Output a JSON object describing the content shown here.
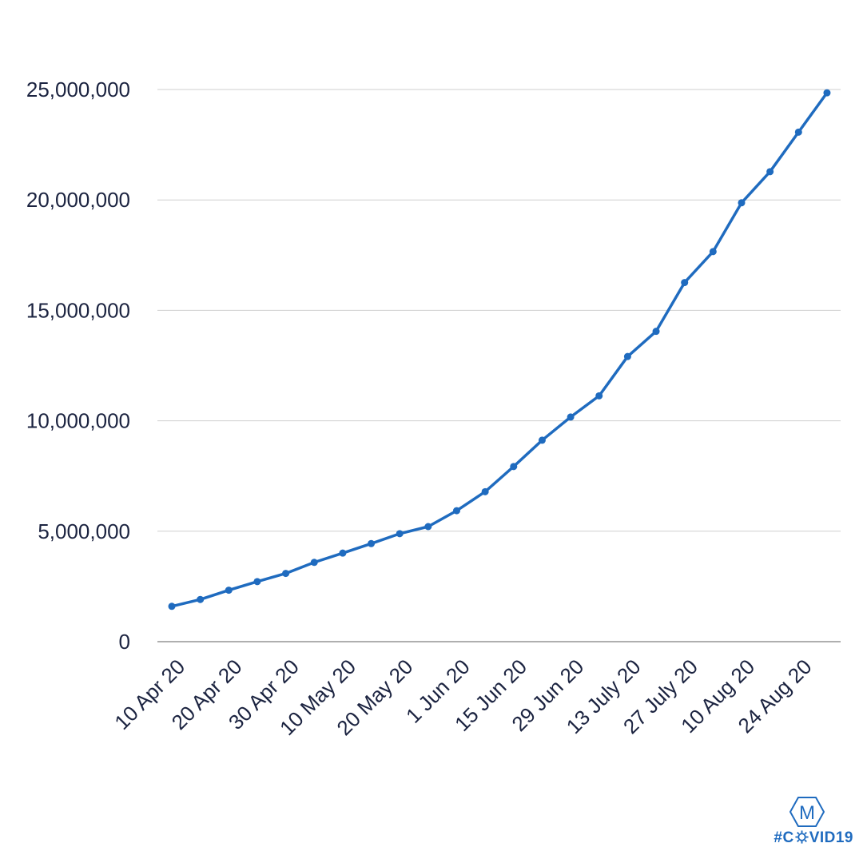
{
  "chart_data": {
    "type": "line",
    "title": "",
    "xlabel": "",
    "ylabel": "",
    "x_tick_labels": [
      "10 Apr 20",
      "20 Apr 20",
      "30 Apr 20",
      "10 May 20",
      "20 May 20",
      "1 Jun 20",
      "15 Jun 20",
      "29 Jun 20",
      "13 July 20",
      "27 July 20",
      "10 Aug 20",
      "24 Aug 20"
    ],
    "y_tick_labels": [
      "0",
      "5,000,000",
      "10,000,000",
      "15,000,000",
      "20,000,000",
      "25,000,000"
    ],
    "ylim": [
      0,
      25000000
    ],
    "grid": true,
    "legend": "none",
    "series": [
      {
        "color": "#1f6bbf",
        "x": [
          "10 Apr 20",
          "15 Apr 20",
          "20 Apr 20",
          "25 Apr 20",
          "30 Apr 20",
          "5 May 20",
          "10 May 20",
          "15 May 20",
          "20 May 20",
          "25 May 20",
          "1 Jun 20",
          "8 Jun 20",
          "15 Jun 20",
          "22 Jun 20",
          "29 Jun 20",
          "6 July 20",
          "13 July 20",
          "20 July 20",
          "27 July 20",
          "3 Aug 20",
          "10 Aug 20",
          "17 Aug 20",
          "24 Aug 20",
          "31 Aug 20"
        ],
        "values": [
          1600000,
          1910000,
          2330000,
          2720000,
          3090000,
          3590000,
          4010000,
          4440000,
          4890000,
          5210000,
          5930000,
          6790000,
          7930000,
          9120000,
          10170000,
          11130000,
          12910000,
          14050000,
          16260000,
          17660000,
          19870000,
          21280000,
          23070000,
          24850000
        ]
      }
    ]
  },
  "brand": {
    "logo_letter": "M",
    "tag_prefix": "#C",
    "tag_suffix": "VID19",
    "color": "#1f6bbf"
  }
}
